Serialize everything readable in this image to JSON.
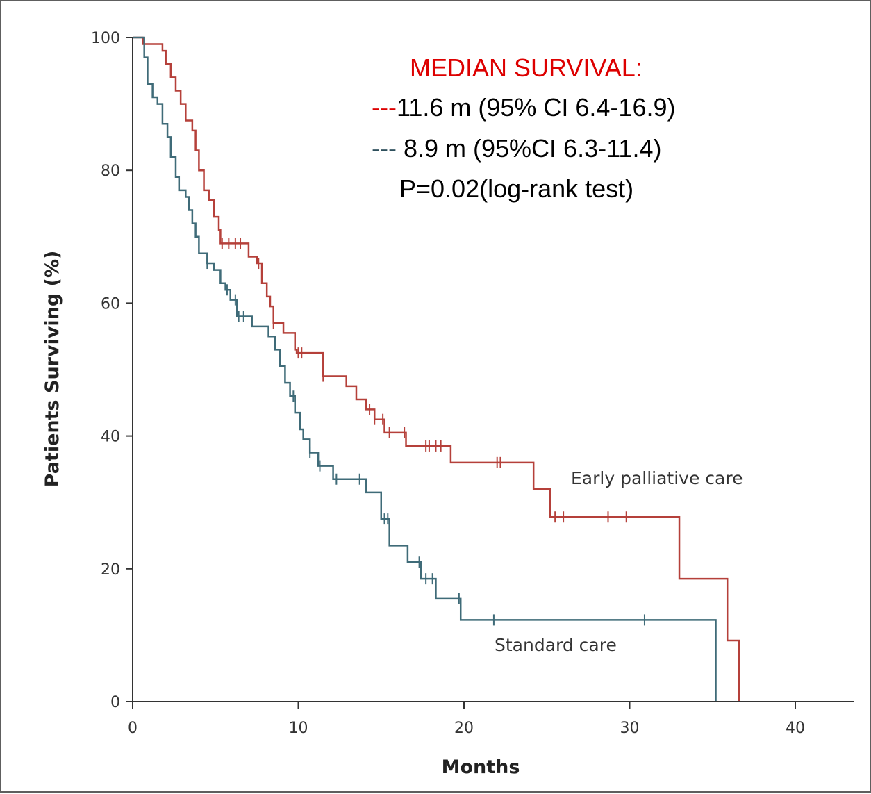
{
  "chart_data": {
    "type": "line",
    "subtype": "kaplan-meier",
    "title": "",
    "xlabel": "Months",
    "ylabel": "Patients Surviving (%)",
    "xlim": [
      0,
      43.5
    ],
    "ylim": [
      0,
      100
    ],
    "xticks": [
      0,
      10,
      20,
      30,
      40
    ],
    "yticks": [
      0,
      20,
      40,
      60,
      80,
      100
    ],
    "grid": false,
    "annotations": {
      "title": "MEDIAN SURVIVAL:",
      "line1_dash": "---",
      "line1_text": "11.6 m (95% CI 6.4-16.9)",
      "line2_dash": "---",
      "line2_text": " 8.9 m (95%CI 6.3-11.4)",
      "line3_text": "P=0.02(log-rank test)"
    },
    "series": [
      {
        "name": "Early palliative care",
        "color": "#b5403a",
        "steps": [
          [
            0,
            100
          ],
          [
            0.6,
            99
          ],
          [
            1.4,
            99
          ],
          [
            1.8,
            98
          ],
          [
            2.0,
            96
          ],
          [
            2.3,
            94
          ],
          [
            2.6,
            92
          ],
          [
            2.9,
            90
          ],
          [
            3.2,
            87.5
          ],
          [
            3.6,
            86
          ],
          [
            3.8,
            83
          ],
          [
            4.0,
            80
          ],
          [
            4.3,
            77
          ],
          [
            4.6,
            75.5
          ],
          [
            4.9,
            73
          ],
          [
            5.2,
            71
          ],
          [
            5.3,
            69
          ],
          [
            7.0,
            67
          ],
          [
            7.5,
            66
          ],
          [
            7.8,
            63
          ],
          [
            8.1,
            61
          ],
          [
            8.3,
            59.5
          ],
          [
            8.5,
            57
          ],
          [
            9.1,
            55.5
          ],
          [
            9.8,
            53
          ],
          [
            9.9,
            52.5
          ],
          [
            11.5,
            49
          ],
          [
            12.9,
            47.5
          ],
          [
            13.5,
            45.5
          ],
          [
            14.1,
            44
          ],
          [
            14.6,
            42.5
          ],
          [
            15.2,
            40.5
          ],
          [
            16.5,
            38.5
          ],
          [
            19.2,
            36
          ],
          [
            24.2,
            32
          ],
          [
            25.2,
            27.8
          ],
          [
            33.0,
            18.5
          ],
          [
            35.9,
            9.2
          ],
          [
            36.6,
            0
          ]
        ],
        "end_x": 36.6,
        "censor_x": [
          5.4,
          5.8,
          6.2,
          6.5,
          7.6,
          8.5,
          10.0,
          10.2,
          11.5,
          14.3,
          14.6,
          15.1,
          15.5,
          16.4,
          17.7,
          17.9,
          18.3,
          18.6,
          22.0,
          22.2,
          25.5,
          26.0,
          28.7,
          29.8
        ]
      },
      {
        "name": "Standard care",
        "color": "#3f6b78",
        "steps": [
          [
            0,
            100
          ],
          [
            0.7,
            97
          ],
          [
            0.9,
            93
          ],
          [
            1.2,
            91
          ],
          [
            1.5,
            90
          ],
          [
            1.8,
            87
          ],
          [
            2.1,
            85
          ],
          [
            2.3,
            82
          ],
          [
            2.6,
            79
          ],
          [
            2.8,
            77
          ],
          [
            3.2,
            76
          ],
          [
            3.4,
            74
          ],
          [
            3.6,
            72
          ],
          [
            3.8,
            70
          ],
          [
            4.0,
            67.5
          ],
          [
            4.5,
            66
          ],
          [
            4.9,
            65
          ],
          [
            5.3,
            63
          ],
          [
            5.6,
            62
          ],
          [
            5.9,
            60.5
          ],
          [
            6.3,
            58
          ],
          [
            7.2,
            56.5
          ],
          [
            8.2,
            55
          ],
          [
            8.6,
            53
          ],
          [
            8.9,
            50.5
          ],
          [
            9.2,
            48
          ],
          [
            9.5,
            46
          ],
          [
            9.8,
            43.5
          ],
          [
            10.1,
            41
          ],
          [
            10.3,
            39.5
          ],
          [
            10.7,
            37.5
          ],
          [
            11.2,
            35.5
          ],
          [
            12.1,
            33.5
          ],
          [
            14.1,
            31.5
          ],
          [
            15.0,
            27.5
          ],
          [
            15.5,
            23.5
          ],
          [
            16.6,
            21
          ],
          [
            17.4,
            18.5
          ],
          [
            18.3,
            15.5
          ],
          [
            19.8,
            12.3
          ],
          [
            35.2,
            0
          ]
        ],
        "end_x": 35.2,
        "censor_x": [
          4.5,
          5.7,
          6.2,
          6.4,
          6.7,
          9.7,
          10.7,
          11.3,
          12.3,
          13.7,
          15.2,
          15.4,
          17.3,
          17.7,
          18.1,
          19.7,
          21.8,
          30.9
        ]
      }
    ]
  }
}
